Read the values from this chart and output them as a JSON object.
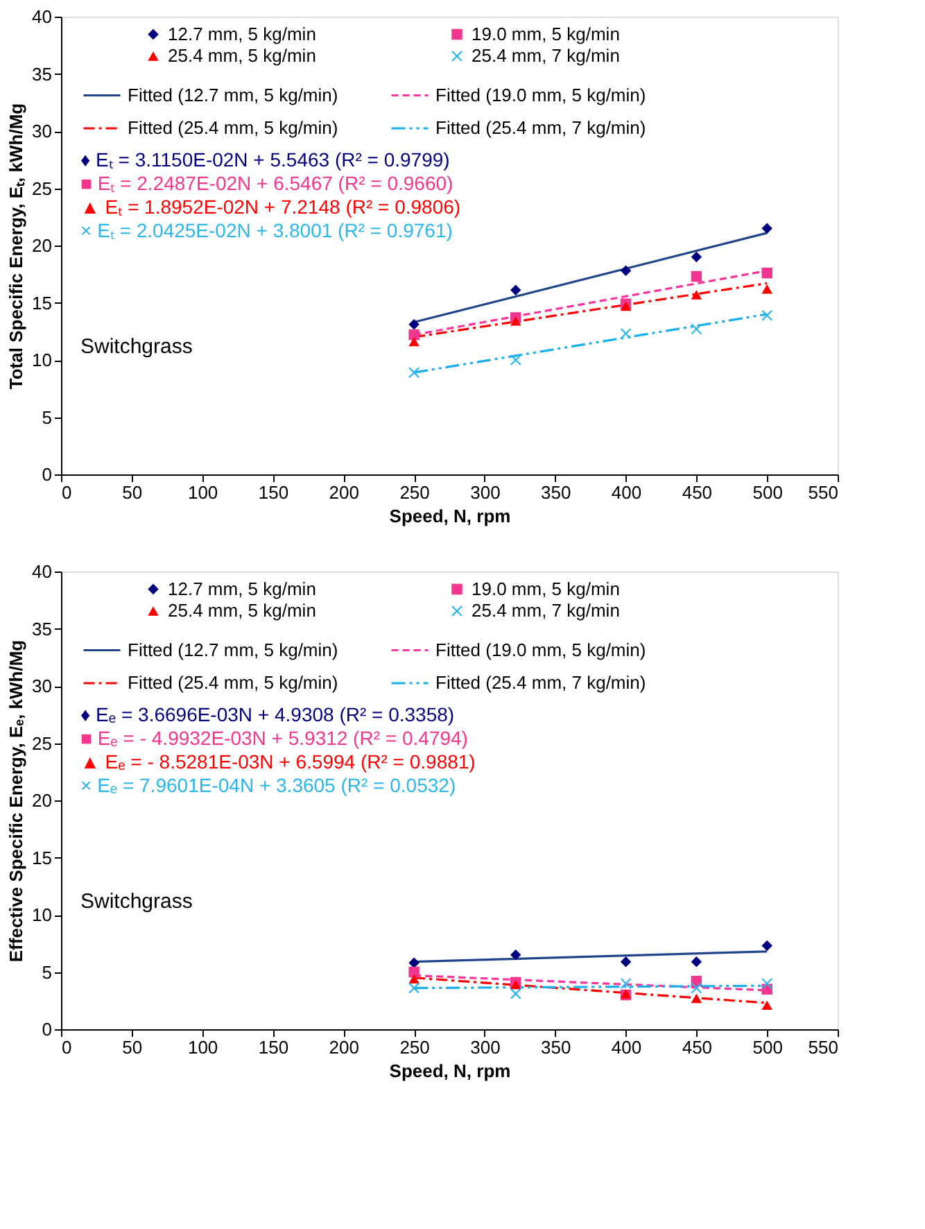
{
  "chart_data": [
    {
      "type": "scatter",
      "xlabel": "Speed, N, rpm",
      "ylabel": "Total Specific Energy, Eₜ, kWh/Mg",
      "xlim": [
        0,
        550
      ],
      "xticks": [
        0,
        50,
        100,
        150,
        200,
        250,
        300,
        350,
        400,
        450,
        500,
        550
      ],
      "ylim": [
        0,
        40
      ],
      "yticks": [
        0,
        5,
        10,
        15,
        20,
        25,
        30,
        35,
        40
      ],
      "grid": false,
      "legend": "top",
      "series": [
        {
          "name": "12.7 mm, 5 kg/min",
          "color": "#00007f",
          "marker": "diamond",
          "x": [
            250,
            322,
            400,
            450,
            500
          ],
          "values": [
            13.1,
            16.1,
            17.8,
            19.0,
            21.5
          ]
        },
        {
          "name": "19.0 mm, 5 kg/min",
          "color": "#f0368f",
          "marker": "square",
          "x": [
            250,
            322,
            400,
            450,
            500
          ],
          "values": [
            12.2,
            13.7,
            14.9,
            17.3,
            17.6
          ]
        },
        {
          "name": "25.4 mm, 5 kg/min",
          "color": "#ff0000",
          "marker": "triangle",
          "x": [
            250,
            322,
            400,
            450,
            500
          ],
          "values": [
            11.6,
            13.4,
            14.7,
            15.7,
            16.2
          ]
        },
        {
          "name": "25.4 mm, 7 kg/min",
          "color": "#2ab6ea",
          "marker": "cross",
          "x": [
            250,
            322,
            400,
            450,
            500
          ],
          "values": [
            8.9,
            10.0,
            12.3,
            12.7,
            13.9
          ]
        },
        {
          "name": "Fitted (12.7 mm, 5 kg/min)",
          "type": "line",
          "color": "#22448a",
          "line_style": "solid",
          "x": [
            250,
            500
          ],
          "values": [
            13.3,
            21.1
          ]
        },
        {
          "name": "Fitted (19.0 mm, 5 kg/min)",
          "type": "line",
          "color": "#ff3399",
          "line_style": "dashed",
          "x": [
            250,
            500
          ],
          "values": [
            12.2,
            17.8
          ]
        },
        {
          "name": "Fitted (25.4 mm, 5 kg/min)",
          "type": "line",
          "color": "#ff0000",
          "line_style": "dashdot",
          "x": [
            250,
            500
          ],
          "values": [
            12.0,
            16.7
          ]
        },
        {
          "name": "Fitted (25.4 mm, 7 kg/min)",
          "type": "line",
          "color": "#1aaeea",
          "line_style": "dashdotdot",
          "x": [
            250,
            500
          ],
          "values": [
            8.9,
            14.0
          ]
        }
      ],
      "annotations": [
        "♦ Eₜ = 3.1150E-02N + 5.5463 (R² = 0.9799)",
        "■ Eₜ = 2.2487E-02N + 6.5467 (R² = 0.9660)",
        "▲ Eₜ = 1.8952E-02N + 7.2148 (R² = 0.9806)",
        "× Eₜ = 2.0425E-02N + 3.8001 (R² = 0.9761)",
        "Switchgrass"
      ]
    },
    {
      "type": "scatter",
      "xlabel": "Speed, N, rpm",
      "ylabel": "Effective Specific Energy, Eₑ, kWh/Mg",
      "xlim": [
        0,
        550
      ],
      "xticks": [
        0,
        50,
        100,
        150,
        200,
        250,
        300,
        350,
        400,
        450,
        500,
        550
      ],
      "ylim": [
        0,
        40
      ],
      "yticks": [
        0,
        5,
        10,
        15,
        20,
        25,
        30,
        35,
        40
      ],
      "grid": false,
      "legend": "top",
      "series": [
        {
          "name": "12.7 mm, 5 kg/min",
          "color": "#00007f",
          "marker": "diamond",
          "x": [
            250,
            322,
            400,
            450,
            500
          ],
          "values": [
            5.8,
            6.5,
            5.9,
            5.9,
            7.3
          ]
        },
        {
          "name": "19.0 mm, 5 kg/min",
          "color": "#f0368f",
          "marker": "square",
          "x": [
            250,
            322,
            400,
            450,
            500
          ],
          "values": [
            5.0,
            4.1,
            3.0,
            4.2,
            3.5
          ]
        },
        {
          "name": "25.4 mm, 5 kg/min",
          "color": "#ff0000",
          "marker": "triangle",
          "x": [
            250,
            322,
            400,
            450,
            500
          ],
          "values": [
            4.4,
            3.9,
            3.1,
            2.7,
            2.1
          ]
        },
        {
          "name": "25.4 mm, 7 kg/min",
          "color": "#2ab6ea",
          "marker": "cross",
          "x": [
            250,
            322,
            400,
            450,
            500
          ],
          "values": [
            3.6,
            3.1,
            4.0,
            3.6,
            4.0
          ]
        },
        {
          "name": "Fitted (12.7 mm, 5 kg/min)",
          "type": "line",
          "color": "#22448a",
          "line_style": "solid",
          "x": [
            250,
            500
          ],
          "values": [
            5.9,
            6.8
          ]
        },
        {
          "name": "Fitted (19.0 mm, 5 kg/min)",
          "type": "line",
          "color": "#ff3399",
          "line_style": "dashed",
          "x": [
            250,
            500
          ],
          "values": [
            4.7,
            3.4
          ]
        },
        {
          "name": "Fitted (25.4 mm, 5 kg/min)",
          "type": "line",
          "color": "#ff0000",
          "line_style": "dashdot",
          "x": [
            250,
            500
          ],
          "values": [
            4.5,
            2.3
          ]
        },
        {
          "name": "Fitted (25.4 mm, 7 kg/min)",
          "type": "line",
          "color": "#1aaeea",
          "line_style": "dashdotdot",
          "x": [
            250,
            500
          ],
          "values": [
            3.6,
            3.8
          ]
        }
      ],
      "annotations": [
        "♦ Eₑ = 3.6696E-03N + 4.9308 (R² = 0.3358)",
        "■ Eₑ = - 4.9932E-03N + 5.9312 (R² = 0.4794)",
        "▲ Eₑ = - 8.5281E-03N + 6.5994 (R² = 0.9881)",
        "× Eₑ = 7.9601E-04N + 3.3605 (R² = 0.0532)",
        "Switchgrass"
      ]
    }
  ]
}
